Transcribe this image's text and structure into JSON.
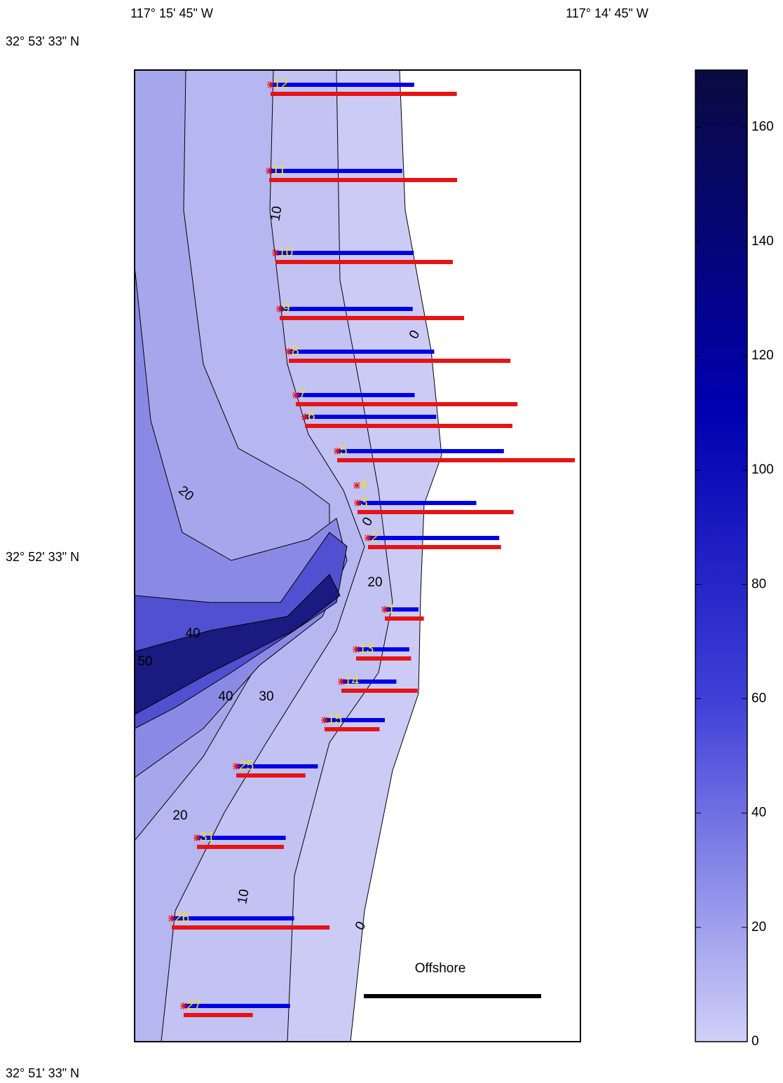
{
  "map": {
    "lon_labels": [
      "117° 15' 45\" W",
      "117° 14' 45\" W"
    ],
    "lat_labels": [
      "32° 53' 33\" N",
      "32° 52' 33\" N",
      "32° 51' 33\" N"
    ],
    "scale_label": "Offshore",
    "contour_labels": [
      10,
      0,
      20,
      0,
      20,
      40,
      50,
      40,
      30,
      20,
      10,
      0
    ],
    "stations": [
      {
        "label": "12",
        "blue": 0.81,
        "red": 1.05
      },
      {
        "label": "11",
        "blue": 0.75,
        "red": 1.06
      },
      {
        "label": "10",
        "blue": 0.78,
        "red": 1.0
      },
      {
        "label": "9",
        "blue": 0.75,
        "red": 1.04
      },
      {
        "label": "8",
        "blue": 0.82,
        "red": 1.25
      },
      {
        "label": "7",
        "blue": 0.67,
        "red": 1.25
      },
      {
        "label": "6",
        "blue": 0.74,
        "red": 1.17
      },
      {
        "label": "5",
        "blue": 0.94,
        "red": 1.34
      },
      {
        "label": "4",
        "blue": null,
        "red": null
      },
      {
        "label": "3",
        "blue": 0.67,
        "red": 0.88
      },
      {
        "label": "2",
        "blue": 0.74,
        "red": 0.75
      },
      {
        "label": "1",
        "blue": 0.19,
        "red": 0.22
      },
      {
        "label": "13",
        "blue": 0.3,
        "red": 0.31
      },
      {
        "label": "14",
        "blue": 0.31,
        "red": 0.43
      },
      {
        "label": "15",
        "blue": 0.34,
        "red": 0.31
      },
      {
        "label": "25",
        "blue": 0.46,
        "red": 0.39
      },
      {
        "label": "31",
        "blue": 0.5,
        "red": 0.49
      },
      {
        "label": "26",
        "blue": 0.69,
        "red": 0.89
      },
      {
        "label": "27",
        "blue": 0.6,
        "red": 0.39
      }
    ],
    "blue_color": "#0000e6",
    "red_color": "#e61414",
    "colorbar": {
      "lim": [
        0,
        170
      ],
      "ticks": [
        0,
        20,
        40,
        60,
        80,
        100,
        120,
        140,
        160
      ],
      "colors": [
        "#d0d0f8",
        "#0a0a40"
      ]
    }
  }
}
